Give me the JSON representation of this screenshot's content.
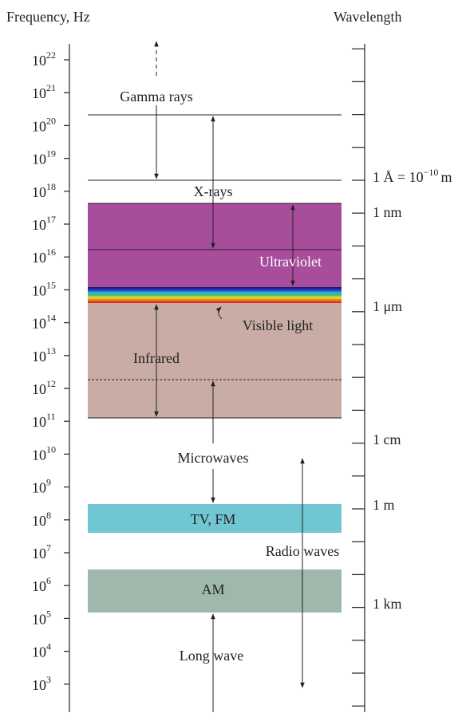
{
  "header": {
    "frequency_axis_title": "Frequency, Hz",
    "wavelength_axis_title": "Wavelength"
  },
  "frequency_labels": [
    {
      "base": "10",
      "exponent": "22"
    },
    {
      "base": "10",
      "exponent": "21"
    },
    {
      "base": "10",
      "exponent": "20"
    },
    {
      "base": "10",
      "exponent": "19"
    },
    {
      "base": "10",
      "exponent": "18"
    },
    {
      "base": "10",
      "exponent": "17"
    },
    {
      "base": "10",
      "exponent": "16"
    },
    {
      "base": "10",
      "exponent": "15"
    },
    {
      "base": "10",
      "exponent": "14"
    },
    {
      "base": "10",
      "exponent": "13"
    },
    {
      "base": "10",
      "exponent": "12"
    },
    {
      "base": "10",
      "exponent": "11"
    },
    {
      "base": "10",
      "exponent": "10"
    },
    {
      "base": "10",
      "exponent": "9"
    },
    {
      "base": "10",
      "exponent": "8"
    },
    {
      "base": "10",
      "exponent": "7"
    },
    {
      "base": "10",
      "exponent": "6"
    },
    {
      "base": "10",
      "exponent": "5"
    },
    {
      "base": "10",
      "exponent": "4"
    },
    {
      "base": "10",
      "exponent": "3"
    }
  ],
  "wavelength_labels": {
    "angstrom": {
      "text": "1 Å = 10",
      "exponent": "−10",
      "unit": "m"
    },
    "nm": "1 nm",
    "um": "1 μm",
    "cm": "1 cm",
    "m": "1 m",
    "km": "1 km"
  },
  "regions": {
    "gamma": "Gamma rays",
    "xray": "X-rays",
    "ultraviolet": "Ultraviolet",
    "visible": "Visible light",
    "infrared": "Infrared",
    "microwaves": "Microwaves",
    "tvfm": "TV, FM",
    "radio": "Radio waves",
    "am": "AM",
    "longwave": "Long wave"
  }
}
